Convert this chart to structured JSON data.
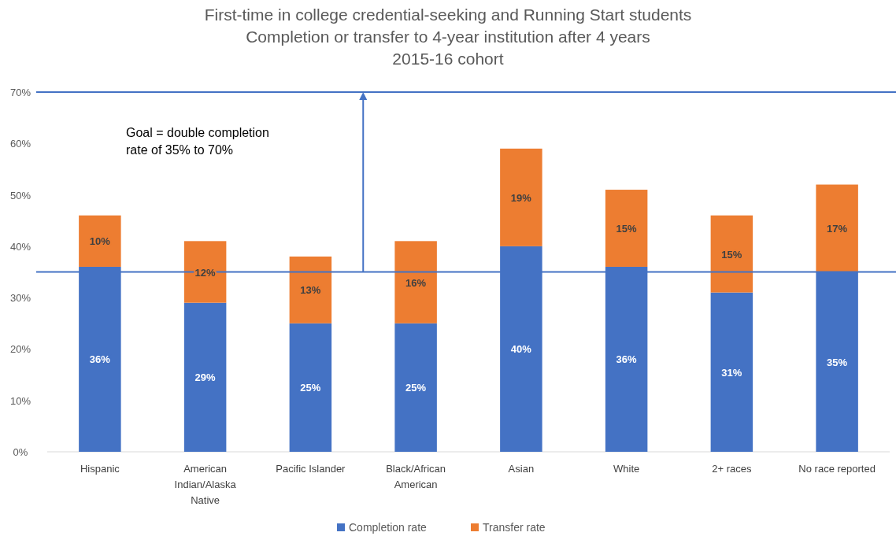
{
  "chart_data": {
    "type": "bar",
    "title": "First-time in college credential-seeking and Running Start students\nCompletion or transfer to 4-year institution after 4 years\n2015-16 cohort",
    "categories": [
      "Hispanic",
      "American Indian/Alaska Native",
      "Pacific Islander",
      "Black/African American",
      "Asian",
      "White",
      "2+ races",
      "No race reported"
    ],
    "stacked": true,
    "series": [
      {
        "name": "Completion rate",
        "color": "#4472c4",
        "values": [
          36,
          29,
          25,
          25,
          40,
          36,
          31,
          35
        ],
        "value_labels": [
          "36%",
          "29%",
          "25%",
          "25%",
          "40%",
          "36%",
          "31%",
          "35%"
        ]
      },
      {
        "name": "Transfer rate",
        "color": "#ed7d31",
        "values": [
          10,
          12,
          13,
          16,
          19,
          15,
          15,
          17
        ],
        "value_labels": [
          "10%",
          "12%",
          "13%",
          "16%",
          "19%",
          "15%",
          "15%",
          "17%"
        ]
      }
    ],
    "ylim": [
      0,
      70
    ],
    "yticks": [
      {
        "value": 0,
        "label": "0%"
      },
      {
        "value": 10,
        "label": "10%"
      },
      {
        "value": 20,
        "label": "20%"
      },
      {
        "value": 30,
        "label": "30%"
      },
      {
        "value": 40,
        "label": "40%"
      },
      {
        "value": 50,
        "label": "50%"
      },
      {
        "value": 60,
        "label": "60%"
      },
      {
        "value": 70,
        "label": "70%"
      }
    ],
    "ref_lines": [
      {
        "axis": "y",
        "value": 35,
        "color": "#4472c4"
      },
      {
        "axis": "y",
        "value": 70,
        "color": "#4472c4"
      }
    ],
    "annotations": [
      "Goal = double completion rate of 35% to 70%"
    ],
    "legend": "bottom",
    "grid": false
  }
}
